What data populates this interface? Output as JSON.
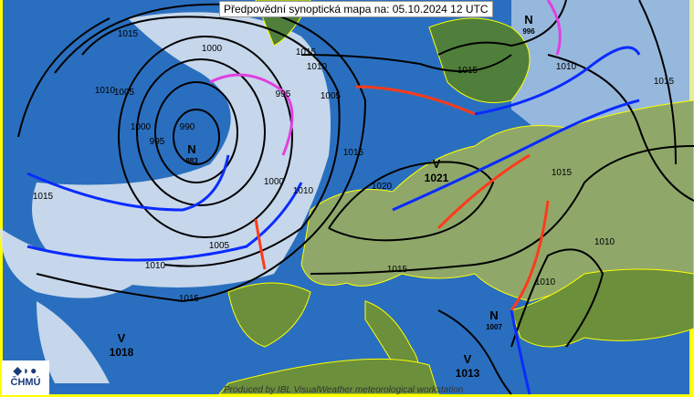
{
  "title": "Předpovědní synoptická mapa na: 05.10.2024 12 UTC",
  "logo": {
    "text": "ČHMÚ"
  },
  "credit": "Produced by IBL VisualWeather meteorological workstation",
  "colors": {
    "sea": "#2a6fbf",
    "cloud": "#d8e4f0",
    "land": "#6b8f3a",
    "border": "#ffff00",
    "cold_front": "#0a2cff",
    "warm_front": "#ff3a1a",
    "occlusion": "#e040e0",
    "wind_arrow": "#ff8c00"
  },
  "pressure_centers": [
    {
      "type": "N",
      "value": "983"
    },
    {
      "type": "N",
      "value": "996"
    },
    {
      "type": "N",
      "value": "1007"
    },
    {
      "type": "V",
      "value": "1021"
    },
    {
      "type": "V",
      "value": "1018"
    },
    {
      "type": "V",
      "value": "1013"
    }
  ],
  "isobar_labels": [
    "1015",
    "1000",
    "1010",
    "1005",
    "1000",
    "995",
    "990",
    "995",
    "1000",
    "1005",
    "1010",
    "1015",
    "1015",
    "1010",
    "1020",
    "1015",
    "1015",
    "1005",
    "1010",
    "1015",
    "1010",
    "1015",
    "1015",
    "1010",
    "1015",
    "1010"
  ]
}
